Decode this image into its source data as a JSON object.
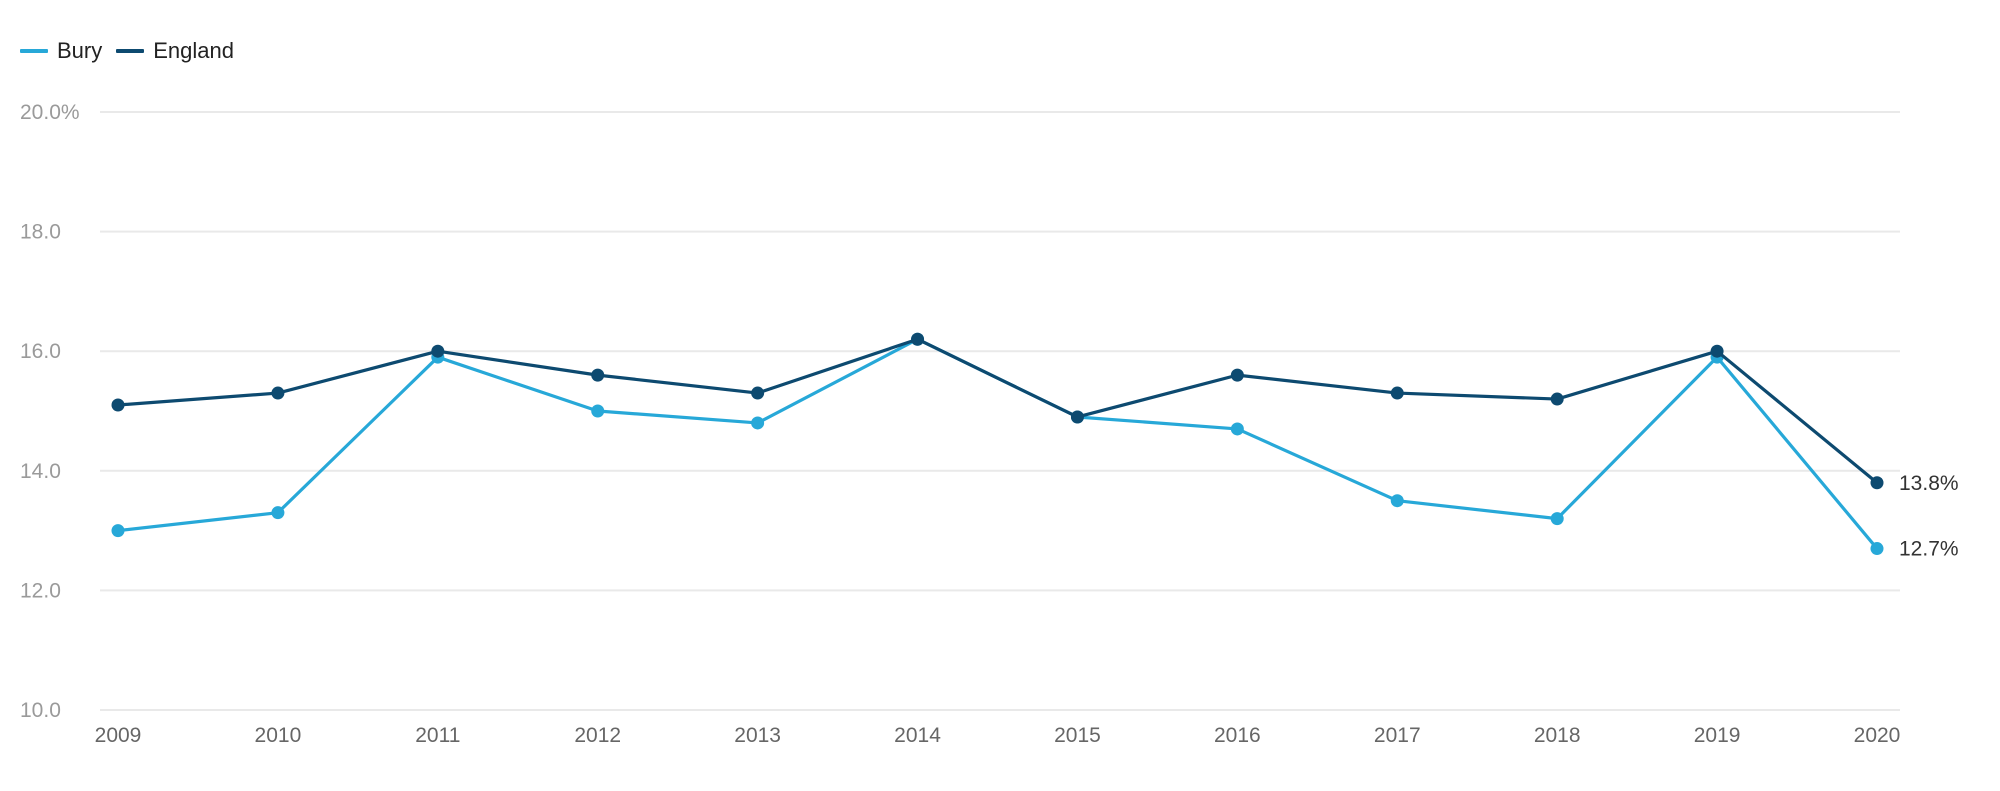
{
  "chart_data": {
    "type": "line",
    "title": "",
    "xlabel": "",
    "ylabel": "",
    "x": [
      "2009",
      "2010",
      "2011",
      "2012",
      "2013",
      "2014",
      "2015",
      "2016",
      "2017",
      "2018",
      "2019",
      "2020"
    ],
    "ylim": [
      10,
      20
    ],
    "y_ticks": [
      {
        "value": 20,
        "label": "20.0%"
      },
      {
        "value": 18,
        "label": "18.0"
      },
      {
        "value": 16,
        "label": "16.0"
      },
      {
        "value": 14,
        "label": "14.0"
      },
      {
        "value": 12,
        "label": "12.0"
      },
      {
        "value": 10,
        "label": "10.0"
      }
    ],
    "grid": true,
    "legend_position": "top-left",
    "series": [
      {
        "name": "Bury",
        "color": "#27a8d8",
        "values": [
          13.0,
          13.3,
          15.9,
          15.0,
          14.8,
          16.2,
          14.9,
          14.7,
          13.5,
          13.2,
          15.9,
          12.7
        ],
        "end_label": "12.7%"
      },
      {
        "name": "England",
        "color": "#0d4a70",
        "values": [
          15.1,
          15.3,
          16.0,
          15.6,
          15.3,
          16.2,
          14.9,
          15.6,
          15.3,
          15.2,
          16.0,
          13.8
        ],
        "end_label": "13.8%"
      }
    ]
  }
}
